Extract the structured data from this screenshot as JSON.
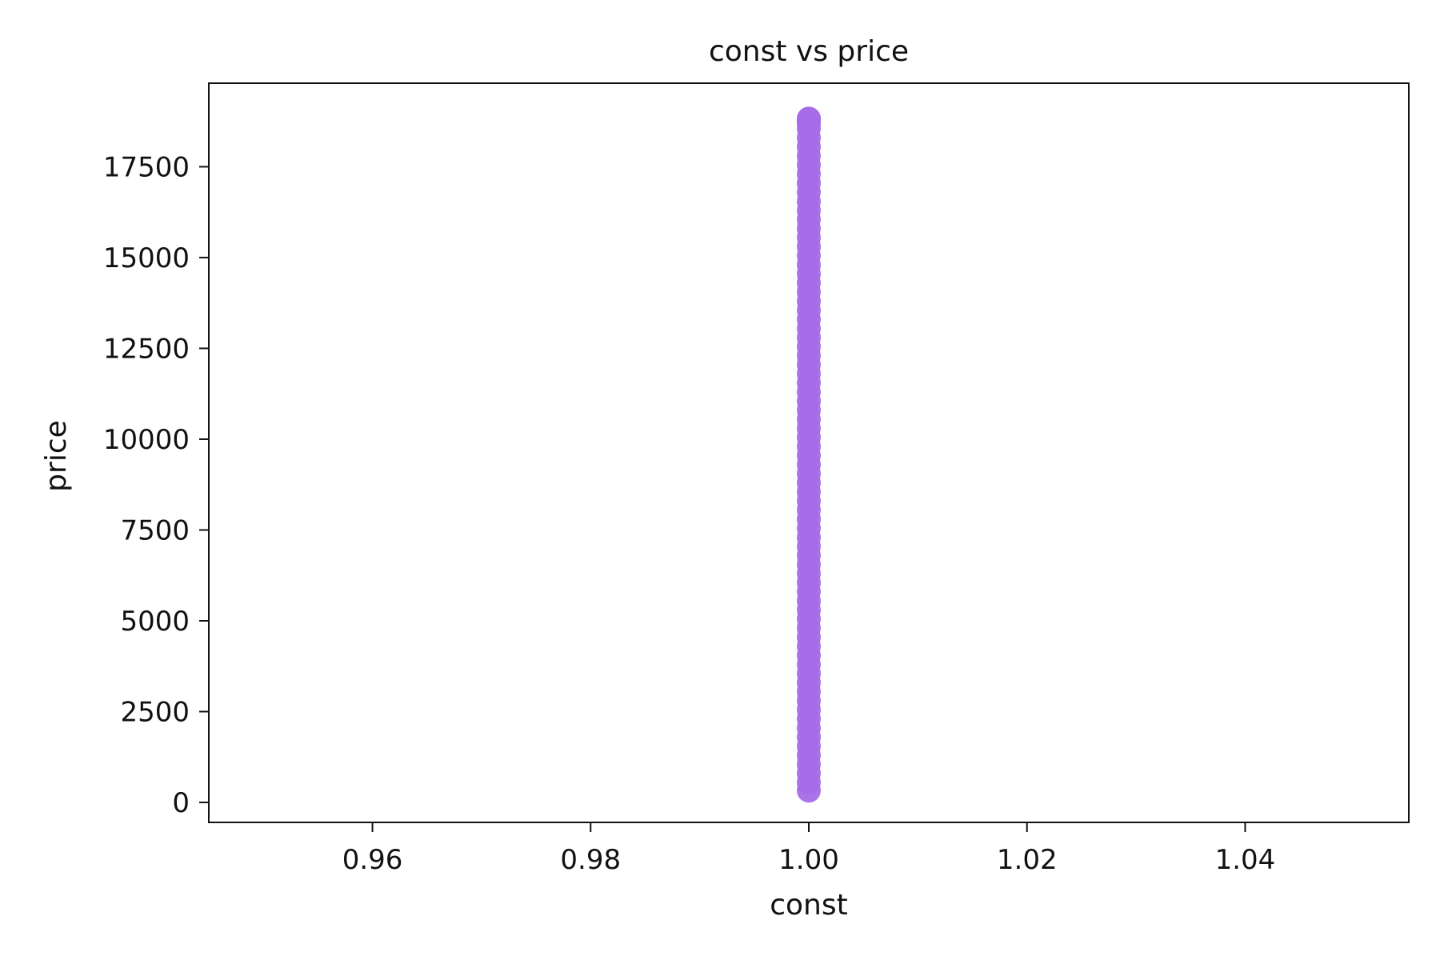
{
  "chart_data": {
    "type": "scatter",
    "title": "const vs price",
    "xlabel": "const",
    "ylabel": "price",
    "xlim": [
      0.945,
      1.055
    ],
    "ylim": [
      -550,
      19800
    ],
    "x_ticks": [
      0.96,
      0.98,
      1.0,
      1.02,
      1.04
    ],
    "x_tick_labels": [
      "0.96",
      "0.98",
      "1.00",
      "1.02",
      "1.04"
    ],
    "y_ticks": [
      0,
      2500,
      5000,
      7500,
      10000,
      12500,
      15000,
      17500
    ],
    "y_tick_labels": [
      "0",
      "2500",
      "5000",
      "7500",
      "10000",
      "12500",
      "15000",
      "17500"
    ],
    "series": [
      {
        "color": "#a66de8",
        "x": [
          1,
          1,
          1,
          1,
          1,
          1,
          1,
          1,
          1,
          1,
          1,
          1,
          1,
          1,
          1,
          1,
          1,
          1,
          1,
          1,
          1,
          1,
          1,
          1,
          1,
          1,
          1,
          1,
          1,
          1,
          1,
          1,
          1,
          1,
          1,
          1,
          1,
          1,
          1,
          1,
          1,
          1,
          1,
          1,
          1,
          1,
          1,
          1,
          1,
          1,
          1,
          1,
          1,
          1,
          1,
          1,
          1,
          1,
          1,
          1,
          1,
          1,
          1,
          1,
          1,
          1,
          1,
          1,
          1,
          1,
          1,
          1,
          1,
          1,
          1,
          1,
          1,
          1,
          1,
          1
        ],
        "y": [
          326,
          550,
          800,
          1050,
          1300,
          1550,
          1800,
          2050,
          2300,
          2550,
          2800,
          3050,
          3300,
          3550,
          3800,
          4050,
          4300,
          4550,
          4800,
          5050,
          5300,
          5550,
          5800,
          6050,
          6300,
          6550,
          6800,
          7050,
          7300,
          7550,
          7800,
          8050,
          8300,
          8550,
          8800,
          9050,
          9300,
          9550,
          9800,
          10050,
          10300,
          10550,
          10800,
          11050,
          11300,
          11550,
          11800,
          12050,
          12300,
          12550,
          12800,
          13050,
          13300,
          13550,
          13800,
          14050,
          14300,
          14550,
          14800,
          15050,
          15300,
          15550,
          15800,
          16050,
          16300,
          16550,
          16800,
          17050,
          17300,
          17550,
          17800,
          18050,
          18300,
          18550,
          18700,
          18750,
          18780,
          18800,
          18823,
          18823
        ]
      }
    ],
    "grid": false,
    "legend": "none"
  }
}
